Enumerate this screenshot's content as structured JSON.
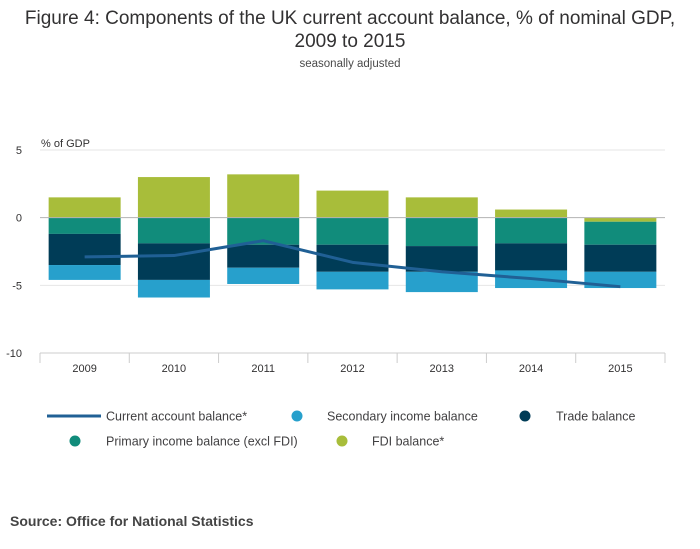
{
  "title": "Figure 4: Components of the UK current account balance, % of nominal GDP, 2009 to 2015",
  "subtitle": "seasonally adjusted",
  "source": "Source: Office for National Statistics",
  "chart_data": {
    "type": "bar",
    "stacked": true,
    "ylabel": "% of GDP",
    "ylim": [
      -10,
      5
    ],
    "yticks": [
      "5",
      "0",
      "-5",
      "-10"
    ],
    "grid": true,
    "legend_position": "bottom",
    "categories": [
      "2009",
      "2010",
      "2011",
      "2012",
      "2013",
      "2014",
      "2015"
    ],
    "series": [
      {
        "name": "FDI balance*",
        "type": "bar",
        "color": "#a8bd3a",
        "values": [
          1.5,
          3.0,
          3.2,
          2.0,
          1.5,
          0.6,
          -0.3
        ]
      },
      {
        "name": "Primary income balance (excl FDI)",
        "type": "bar",
        "color": "#118c7b",
        "values": [
          -1.2,
          -1.9,
          -2.0,
          -2.0,
          -2.1,
          -1.9,
          -1.7
        ]
      },
      {
        "name": "Trade balance",
        "type": "bar",
        "color": "#003c57",
        "values": [
          -2.3,
          -2.7,
          -1.7,
          -2.0,
          -1.9,
          -2.0,
          -2.0
        ]
      },
      {
        "name": "Secondary income balance",
        "type": "bar",
        "color": "#27a0cc",
        "values": [
          -1.1,
          -1.3,
          -1.2,
          -1.3,
          -1.5,
          -1.3,
          -1.2
        ]
      },
      {
        "name": "Current account balance*",
        "type": "line",
        "color": "#206095",
        "values": [
          -2.9,
          -2.8,
          -1.7,
          -3.3,
          -4.0,
          -4.5,
          -5.1
        ]
      }
    ]
  }
}
